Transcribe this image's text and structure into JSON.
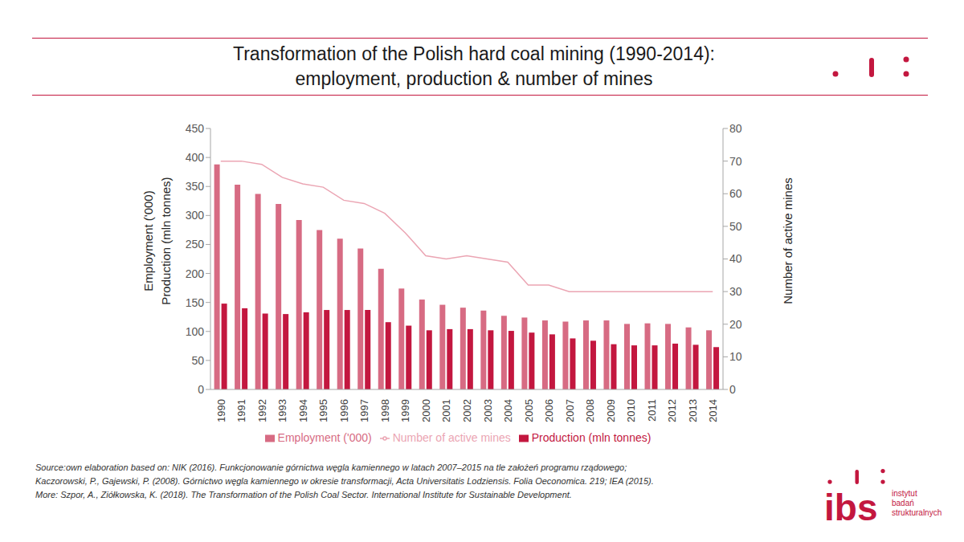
{
  "chart_data": {
    "type": "bar",
    "title": "Transformation of the Polish hard coal mining (1990-2014):\nemployment, production & number of mines",
    "ylabel": [
      "Employment ('000)",
      "Production (mln tonnes)"
    ],
    "y2label": "Number of active mines",
    "categories": [
      "1990",
      "1991",
      "1992",
      "1993",
      "1994",
      "1995",
      "1996",
      "1997",
      "1998",
      "1999",
      "2000",
      "2001",
      "2002",
      "2003",
      "2004",
      "2005",
      "2006",
      "2007",
      "2008",
      "2009",
      "2010",
      "2011",
      "2012",
      "2013",
      "2014"
    ],
    "series": [
      {
        "name": "Employment ('000)",
        "type": "bar",
        "color": "#d76b83",
        "values": [
          388,
          353,
          337,
          320,
          292,
          275,
          260,
          243,
          208,
          174,
          155,
          146,
          141,
          136,
          127,
          124,
          119,
          117,
          119,
          119,
          113,
          114,
          113,
          107,
          102
        ]
      },
      {
        "name": "Production (mln tonnes)",
        "type": "bar",
        "color": "#c3173f",
        "values": [
          148,
          140,
          131,
          130,
          133,
          137,
          137,
          137,
          116,
          110,
          102,
          104,
          104,
          102,
          101,
          98,
          95,
          88,
          84,
          78,
          76,
          76,
          79,
          77,
          73
        ]
      },
      {
        "name": "Number of active mines",
        "type": "line",
        "axis": "y2",
        "color": "#eba5b3",
        "values": [
          70,
          70,
          69,
          65,
          63,
          62,
          58,
          57,
          54,
          48,
          41,
          40,
          41,
          40,
          39,
          32,
          32,
          30,
          30,
          30,
          30,
          30,
          30,
          30,
          30
        ]
      }
    ],
    "ylim": [
      0,
      450
    ],
    "yticks": [
      0,
      50,
      100,
      150,
      200,
      250,
      300,
      350,
      400,
      450
    ],
    "y2lim": [
      0,
      80
    ],
    "y2ticks": [
      0,
      10,
      20,
      30,
      40,
      50,
      60,
      70,
      80
    ],
    "grid": false,
    "legend": "bottom"
  },
  "source": [
    "Source:own elaboration based on: NIK (2016). Funkcjonowanie górnictwa węgla kamiennego w latach 2007–2015 na tle założeń programu rządowego;",
    "Kaczorowski, P., Gajewski, P. (2008). Górnictwo węgla kamiennego w okresie transformacji, Acta Universitatis Lodziensis. Folia Oeconomica. 219; IEA (2015).",
    "More: Szpor, A., Ziółkowska, K. (2018). The Transformation of the Polish Coal Sector. International Institute for Sustainable Development."
  ],
  "logo": {
    "brand": "ibs",
    "name": [
      "instytut",
      "badań",
      "strukturalnych"
    ]
  }
}
